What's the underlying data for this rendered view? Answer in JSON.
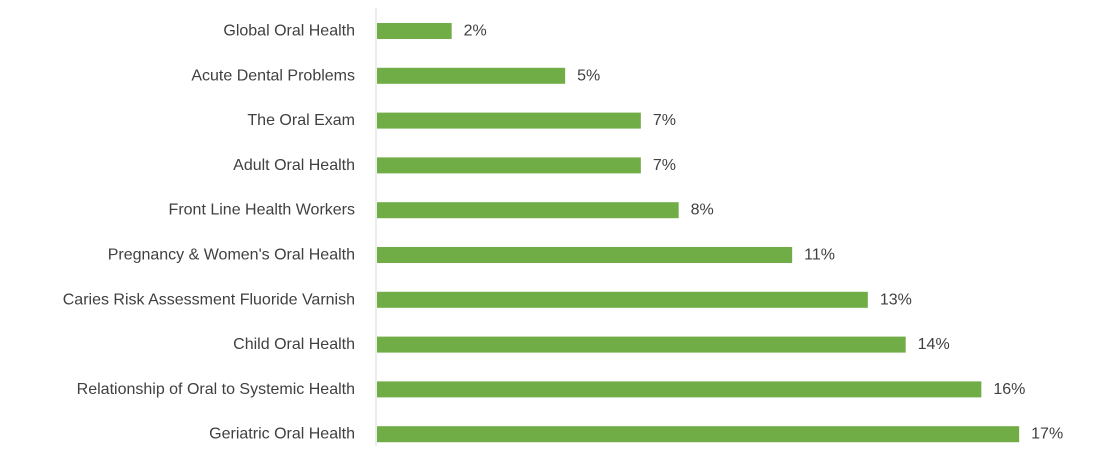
{
  "chart_data": {
    "type": "bar",
    "orientation": "horizontal",
    "categories": [
      "Global Oral Health",
      "Acute Dental Problems",
      "The Oral Exam",
      "Adult Oral Health",
      "Front Line Health Workers",
      "Pregnancy & Women's Oral Health",
      "Caries Risk Assessment Fluoride Varnish",
      "Child Oral Health",
      "Relationship of Oral to Systemic Health",
      "Geriatric Oral Health"
    ],
    "values": [
      2,
      5,
      7,
      7,
      8,
      11,
      13,
      14,
      16,
      17
    ],
    "data_labels": [
      "2%",
      "5%",
      "7%",
      "7%",
      "8%",
      "11%",
      "13%",
      "14%",
      "16%",
      "17%"
    ],
    "value_unit": "%",
    "xlim": [
      0,
      18
    ],
    "grid": false,
    "legend": "none",
    "title": "",
    "xlabel": "",
    "ylabel": "",
    "colors": {
      "bar": "#70ad47",
      "axis": "#d9d9d9",
      "text": "#404040"
    }
  }
}
